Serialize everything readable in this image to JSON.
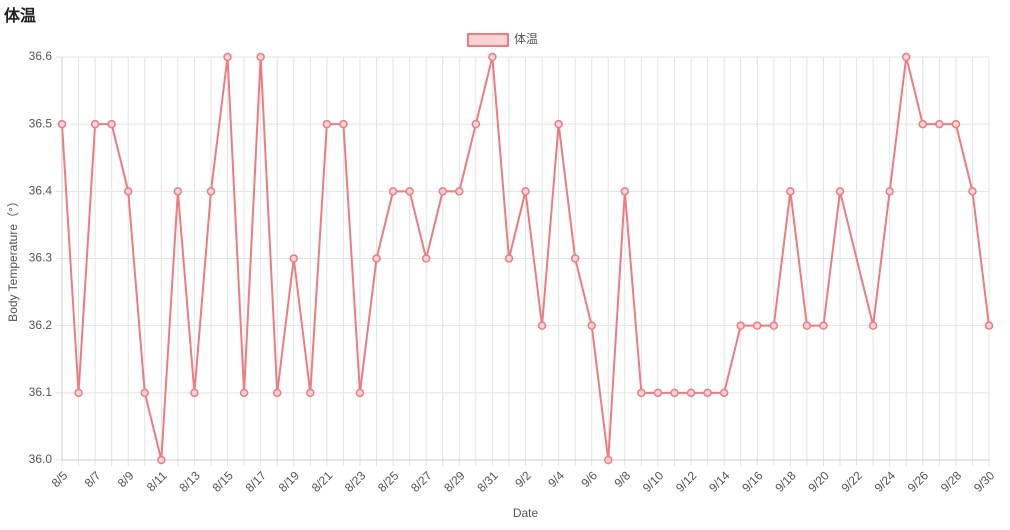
{
  "chart_data": {
    "type": "line",
    "title": "体温",
    "x_label": "Date",
    "y_label": "Body Temperature（°）",
    "categories": [
      "8/5",
      null,
      "8/7",
      null,
      "8/9",
      null,
      "8/11",
      null,
      "8/13",
      null,
      "8/15",
      null,
      "8/17",
      null,
      "8/19",
      null,
      "8/21",
      null,
      "8/23",
      null,
      "8/25",
      null,
      "8/27",
      null,
      "8/29",
      null,
      "8/31",
      null,
      "9/2",
      null,
      "9/4",
      null,
      "9/6",
      null,
      "9/8",
      null,
      "9/10",
      null,
      "9/12",
      null,
      "9/14",
      null,
      "9/16",
      null,
      "9/18",
      null,
      "9/20",
      null,
      "9/22",
      null,
      "9/24",
      null,
      "9/26",
      null,
      "9/28",
      null,
      "9/30"
    ],
    "series": [
      {
        "name": "体温",
        "color": "#f07b80",
        "point_fill": "#f6d3d5",
        "values": [
          36.5,
          36.1,
          36.5,
          36.5,
          36.4,
          36.1,
          36.0,
          36.4,
          36.1,
          36.4,
          36.6,
          36.1,
          36.6,
          36.1,
          36.3,
          36.1,
          36.5,
          36.5,
          36.1,
          36.3,
          36.4,
          36.4,
          36.3,
          36.4,
          36.4,
          36.5,
          36.6,
          36.3,
          36.4,
          36.2,
          36.5,
          36.3,
          36.2,
          36.0,
          36.4,
          36.1,
          36.1,
          36.1,
          36.1,
          36.1,
          36.1,
          36.2,
          36.2,
          36.2,
          36.4,
          36.2,
          36.2,
          36.4,
          null,
          36.2,
          36.4,
          36.6,
          36.5,
          36.5,
          36.5,
          36.4,
          36.2
        ]
      }
    ],
    "span_gaps": true,
    "ylim": [
      36.0,
      36.6
    ],
    "yticks": [
      {
        "value": 36.0,
        "label": "36.0"
      },
      36.1,
      36.2,
      36.3,
      36.4,
      36.5,
      36.6
    ],
    "grid": true,
    "legend": "top"
  }
}
